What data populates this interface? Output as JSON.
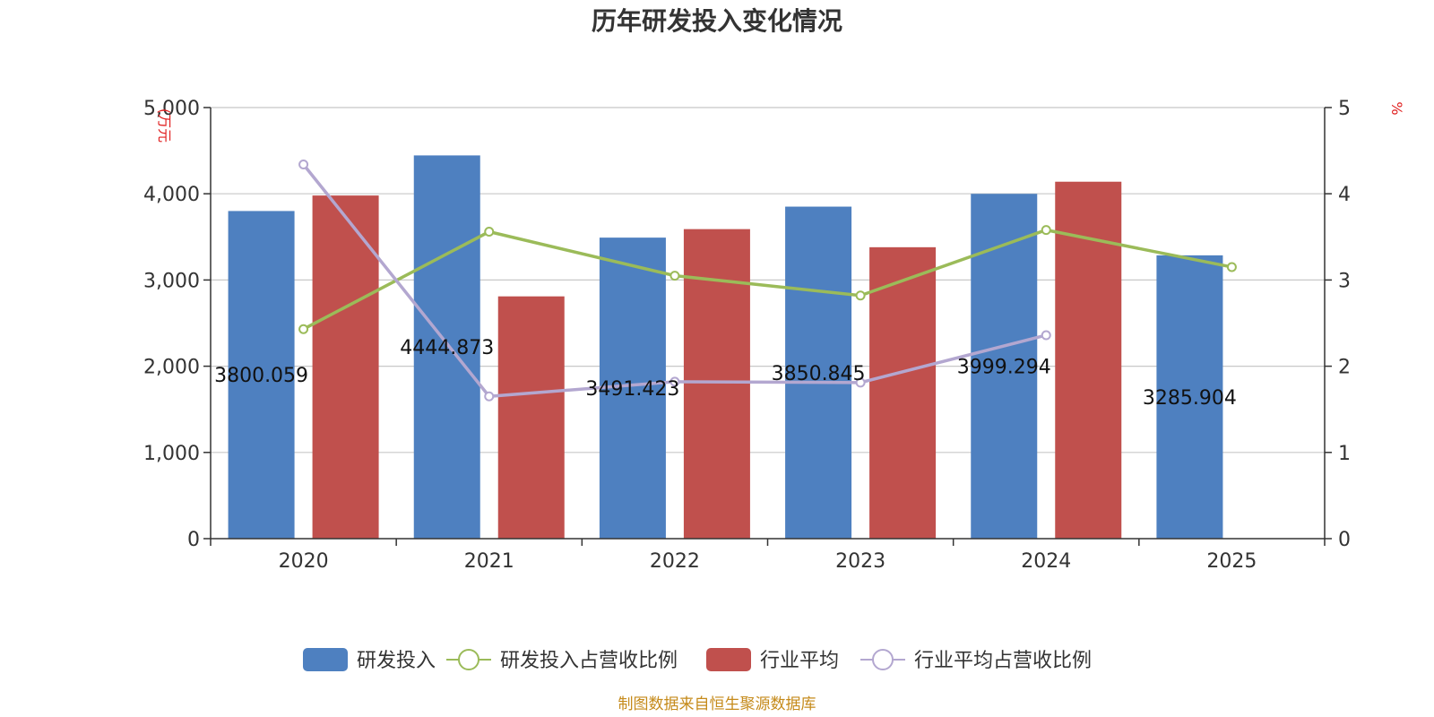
{
  "chart_data": {
    "type": "bar",
    "title": "历年研发投入变化情况",
    "categories": [
      "2020",
      "2021",
      "2022",
      "2023",
      "2024",
      "2025"
    ],
    "left_axis": {
      "unit": "(万元",
      "range": [
        0,
        5000
      ],
      "ticks": [
        0,
        1000,
        2000,
        3000,
        4000,
        5000
      ],
      "tick_labels": [
        "0",
        "1,000",
        "2,000",
        "3,000",
        "4,000",
        "5,000"
      ]
    },
    "right_axis": {
      "unit": "%",
      "range": [
        0,
        5
      ],
      "ticks": [
        0,
        1,
        2,
        3,
        4,
        5
      ],
      "tick_labels": [
        "0",
        "1",
        "2",
        "3",
        "4",
        "5"
      ]
    },
    "grid": true,
    "legend_position": "bottom-center",
    "series": [
      {
        "name": "研发投入",
        "kind": "bar",
        "axis": "left",
        "color": "#4e80c0",
        "values": [
          3800.059,
          4444.873,
          3491.423,
          3850.845,
          3999.294,
          3285.904
        ],
        "data_labels": [
          "3800.059",
          "4444.873",
          "3491.423",
          "3850.845",
          "3999.294",
          "3285.904"
        ]
      },
      {
        "name": "研发投入占营收比例",
        "kind": "line",
        "axis": "right",
        "color": "#9bbb59",
        "values": [
          2.43,
          3.56,
          3.05,
          2.82,
          3.58,
          3.15
        ]
      },
      {
        "name": "行业平均",
        "kind": "bar",
        "axis": "left",
        "color": "#c0504d",
        "values": [
          3980,
          2810,
          3590,
          3380,
          4140,
          null
        ]
      },
      {
        "name": "行业平均占营收比例",
        "kind": "line",
        "axis": "right",
        "color": "#b3a7d0",
        "values": [
          4.34,
          1.65,
          1.82,
          1.81,
          2.36,
          null
        ]
      }
    ]
  },
  "footer": {
    "source": "制图数据来自恒生聚源数据库"
  }
}
